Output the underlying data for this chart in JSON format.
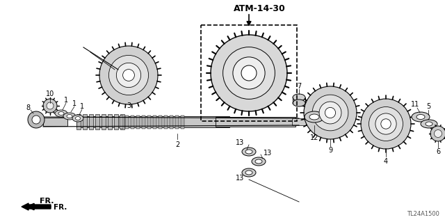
{
  "title": "ATM-14-30",
  "part_number": "TL24A1500",
  "fr_label": "FR.",
  "bg_color": "#ffffff",
  "fig_width": 6.4,
  "fig_height": 3.19,
  "dpi": 100
}
